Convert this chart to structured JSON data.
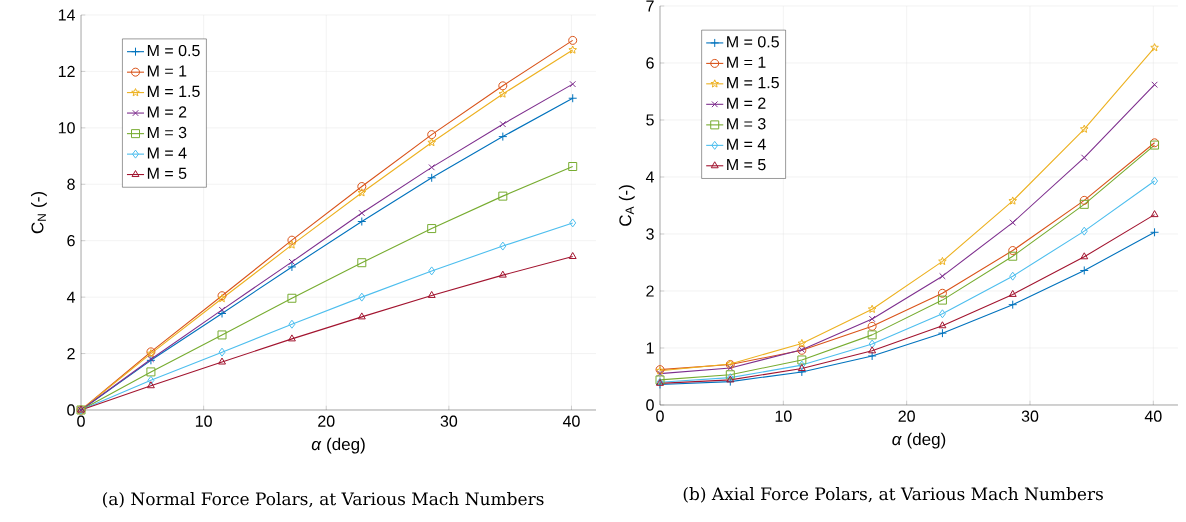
{
  "chart_data": [
    {
      "type": "line",
      "xlabel": "*α* (deg)",
      "ylabel": "C$_{N}$ (-)",
      "x": [
        0,
        5.7,
        11.5,
        17.2,
        22.9,
        28.6,
        34.4,
        40.1
      ],
      "xlim": [
        0,
        42
      ],
      "xticks": [
        0,
        10,
        20,
        30,
        40
      ],
      "ylim": [
        0,
        14
      ],
      "yticks": [
        0,
        2,
        4,
        6,
        8,
        10,
        12,
        14
      ],
      "grid": true,
      "legend": "top left",
      "line_style": "solid",
      "annotations": [
        "(a) Normal Force Polars, at Various Mach Numbers"
      ],
      "series": [
        {
          "name": "M = 0.5",
          "color": "#0072bd",
          "marker": "cross",
          "values": [
            0,
            1.76,
            3.42,
            5.07,
            6.68,
            8.23,
            9.69,
            11.05
          ]
        },
        {
          "name": "M = 1",
          "color": "#d95319",
          "marker": "circle",
          "values": [
            0,
            2.06,
            4.05,
            6.02,
            7.92,
            9.76,
            11.49,
            13.1
          ]
        },
        {
          "name": "M = 1.5",
          "color": "#edb120",
          "marker": "star",
          "values": [
            0,
            2.0,
            3.95,
            5.85,
            7.7,
            9.48,
            11.2,
            12.76
          ]
        },
        {
          "name": "M = 2",
          "color": "#7e2f8e",
          "marker": "x",
          "values": [
            0,
            1.8,
            3.55,
            5.25,
            6.98,
            8.6,
            10.13,
            11.55
          ]
        },
        {
          "name": "M = 3",
          "color": "#77ac30",
          "marker": "square",
          "values": [
            0,
            1.35,
            2.66,
            3.96,
            5.22,
            6.43,
            7.58,
            8.63
          ]
        },
        {
          "name": "M = 4",
          "color": "#4dbeee",
          "marker": "diamond",
          "values": [
            0,
            1.05,
            2.05,
            3.04,
            4.0,
            4.93,
            5.81,
            6.63
          ]
        },
        {
          "name": "M = 5",
          "color": "#a2142f",
          "marker": "triangle",
          "values": [
            0,
            0.86,
            1.7,
            2.52,
            3.3,
            4.06,
            4.78,
            5.44
          ]
        }
      ]
    },
    {
      "type": "line",
      "xlabel": "*α* (deg)",
      "ylabel": "C$_{A}$ (-)",
      "x": [
        0,
        5.7,
        11.5,
        17.2,
        22.9,
        28.6,
        34.4,
        40.1
      ],
      "xlim": [
        0,
        42
      ],
      "xticks": [
        0,
        10,
        20,
        30,
        40
      ],
      "ylim": [
        0,
        7
      ],
      "yticks": [
        0,
        1,
        2,
        3,
        4,
        5,
        6,
        7
      ],
      "grid": true,
      "legend": "top left",
      "line_style": "solid",
      "annotations": [
        "(b) Axial Force Polars, at Various Mach Numbers"
      ],
      "series": [
        {
          "name": "M = 0.5",
          "color": "#0072bd",
          "marker": "cross",
          "values": [
            0.36,
            0.41,
            0.58,
            0.86,
            1.26,
            1.76,
            2.36,
            3.03
          ]
        },
        {
          "name": "M = 1",
          "color": "#d95319",
          "marker": "circle",
          "values": [
            0.62,
            0.71,
            0.96,
            1.38,
            1.96,
            2.71,
            3.59,
            4.6
          ]
        },
        {
          "name": "M = 1.5",
          "color": "#edb120",
          "marker": "star",
          "values": [
            0.6,
            0.72,
            1.08,
            1.68,
            2.52,
            3.58,
            4.84,
            6.27
          ]
        },
        {
          "name": "M = 2",
          "color": "#7e2f8e",
          "marker": "x",
          "values": [
            0.55,
            0.65,
            0.97,
            1.51,
            2.26,
            3.2,
            4.34,
            5.62
          ]
        },
        {
          "name": "M = 3",
          "color": "#77ac30",
          "marker": "square",
          "values": [
            0.44,
            0.53,
            0.79,
            1.23,
            1.84,
            2.61,
            3.52,
            4.56
          ]
        },
        {
          "name": "M = 4",
          "color": "#4dbeee",
          "marker": "diamond",
          "values": [
            0.4,
            0.48,
            0.7,
            1.07,
            1.6,
            2.26,
            3.05,
            3.93
          ]
        },
        {
          "name": "M = 5",
          "color": "#a2142f",
          "marker": "triangle",
          "values": [
            0.38,
            0.44,
            0.64,
            0.95,
            1.39,
            1.94,
            2.6,
            3.34
          ]
        }
      ]
    }
  ]
}
